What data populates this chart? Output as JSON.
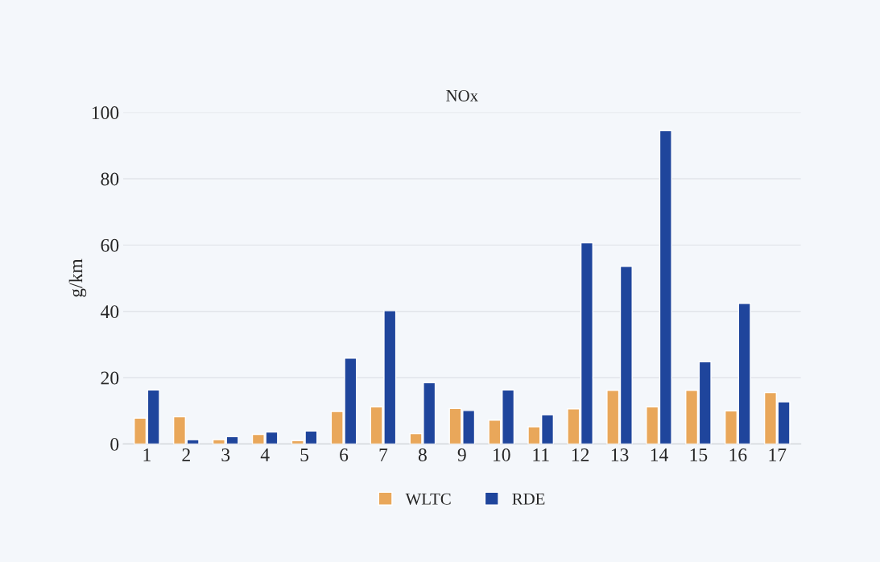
{
  "chart_data": {
    "type": "bar",
    "title": "NOx",
    "ylabel": "g/km",
    "categories": [
      "1",
      "2",
      "3",
      "4",
      "5",
      "6",
      "7",
      "8",
      "9",
      "10",
      "11",
      "12",
      "13",
      "14",
      "15",
      "16",
      "17"
    ],
    "series": [
      {
        "name": "WLTC",
        "color": "#e9a75a",
        "values": [
          7.8,
          8.2,
          1.3,
          2.9,
          1.0,
          9.8,
          11.2,
          3.1,
          10.7,
          7.2,
          5.2,
          10.6,
          16.2,
          11.2,
          16.2,
          10.0,
          15.5
        ]
      },
      {
        "name": "RDE",
        "color": "#1f459c",
        "values": [
          16.3,
          1.3,
          2.2,
          3.6,
          3.9,
          25.9,
          40.2,
          18.5,
          10.1,
          16.3,
          8.8,
          60.7,
          53.6,
          94.5,
          24.8,
          42.4,
          12.7
        ]
      }
    ],
    "ylim": [
      0,
      100
    ],
    "yticks": [
      0,
      20,
      40,
      60,
      80,
      100
    ],
    "grid": "y",
    "legend": "bottom"
  }
}
